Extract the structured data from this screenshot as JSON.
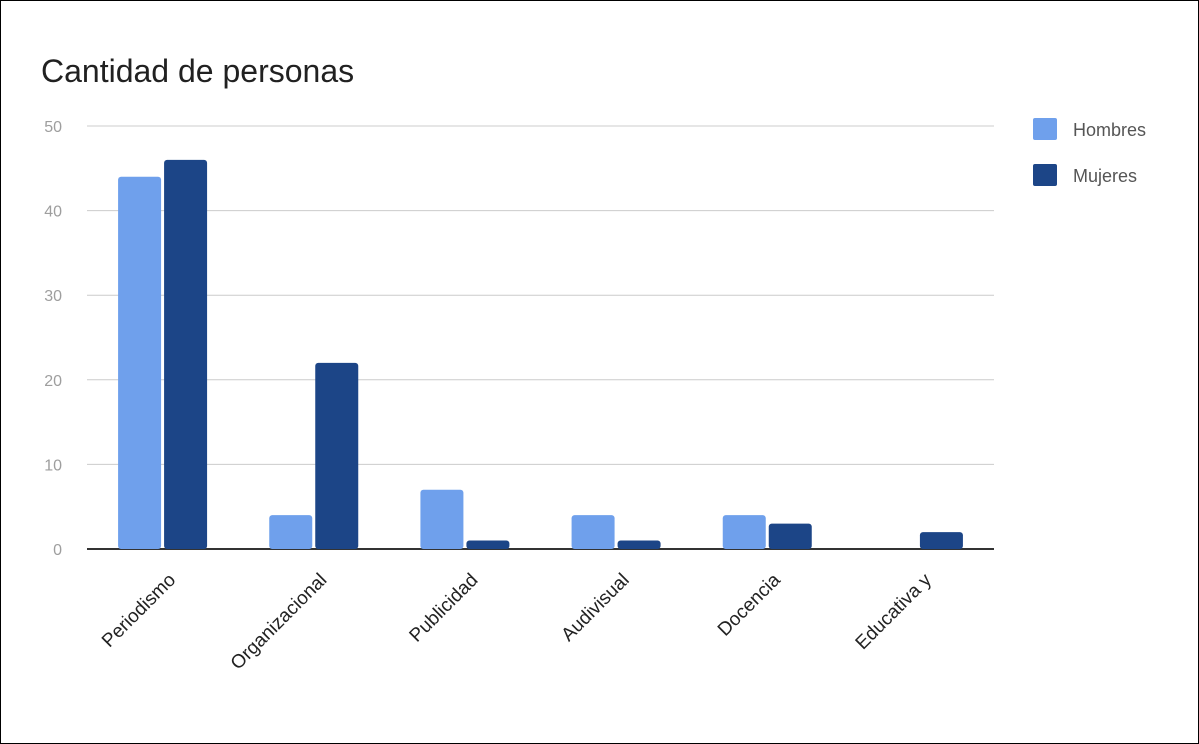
{
  "chart_data": {
    "type": "bar",
    "title": "Cantidad de personas",
    "xlabel": "",
    "ylabel": "",
    "ylim": [
      0,
      50
    ],
    "yticks": [
      "0",
      "10",
      "20",
      "30",
      "40",
      "50"
    ],
    "grid": true,
    "legend_position": "right",
    "categories": [
      "Periodismo",
      "Organizacional",
      "Publicidad",
      "Audivisual",
      "Docencia",
      "Educativa y"
    ],
    "series": [
      {
        "name": "Hombres",
        "values": [
          44,
          4,
          7,
          4,
          4,
          0
        ],
        "color": "#6fa0ec"
      },
      {
        "name": "Mujeres",
        "values": [
          46,
          22,
          1,
          1,
          3,
          2
        ],
        "color": "#1c4587"
      }
    ]
  }
}
